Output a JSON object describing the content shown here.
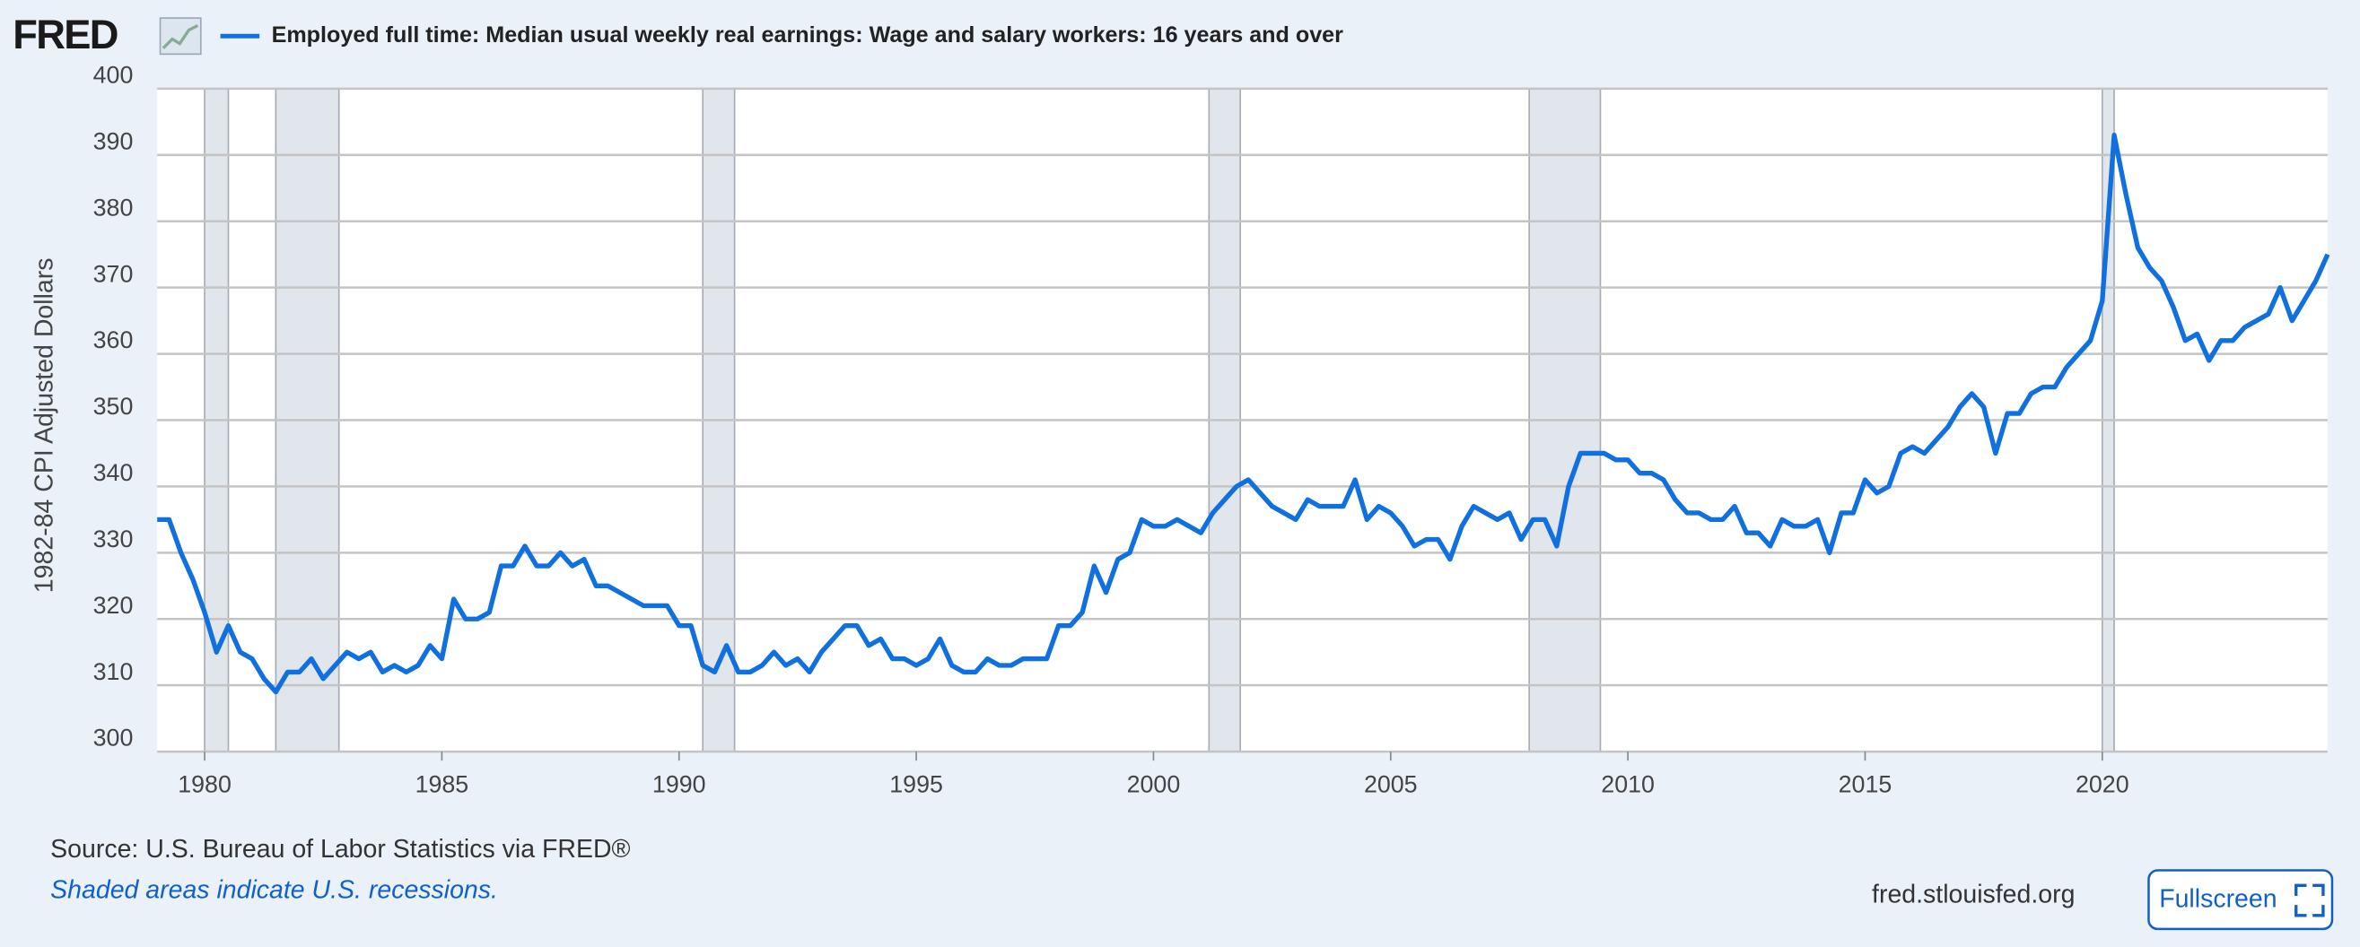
{
  "chart_data": {
    "type": "line",
    "logo": "FRED",
    "title": "Employed full time: Median usual weekly real earnings: Wage and salary workers: 16 years and over",
    "ylabel": "1982-84 CPI Adjusted Dollars",
    "source": "Source: U.S. Bureau of Labor Statistics via FRED®",
    "note": "Shaded areas indicate U.S. recessions.",
    "site": "fred.stlouisfed.org",
    "button": "Fullscreen",
    "xlim": [
      1979,
      2024.75
    ],
    "xticks": [
      1980,
      1985,
      1990,
      1995,
      2000,
      2005,
      2010,
      2015,
      2020
    ],
    "ylim": [
      300,
      400
    ],
    "yticks": [
      300,
      310,
      320,
      330,
      340,
      350,
      360,
      370,
      380,
      390,
      400
    ],
    "grid": true,
    "recessions": [
      [
        1980.0,
        1980.5
      ],
      [
        1981.5,
        1982.83
      ],
      [
        1990.5,
        1991.17
      ],
      [
        2001.17,
        2001.83
      ],
      [
        2007.92,
        2009.42
      ],
      [
        2020.0,
        2020.25
      ]
    ],
    "x": [
      1979,
      1979.25,
      1979.5,
      1979.75,
      1980,
      1980.25,
      1980.5,
      1980.75,
      1981,
      1981.25,
      1981.5,
      1981.75,
      1982,
      1982.25,
      1982.5,
      1982.75,
      1983,
      1983.25,
      1983.5,
      1983.75,
      1984,
      1984.25,
      1984.5,
      1984.75,
      1985,
      1985.25,
      1985.5,
      1985.75,
      1986,
      1986.25,
      1986.5,
      1986.75,
      1987,
      1987.25,
      1987.5,
      1987.75,
      1988,
      1988.25,
      1988.5,
      1988.75,
      1989,
      1989.25,
      1989.5,
      1989.75,
      1990,
      1990.25,
      1990.5,
      1990.75,
      1991,
      1991.25,
      1991.5,
      1991.75,
      1992,
      1992.25,
      1992.5,
      1992.75,
      1993,
      1993.25,
      1993.5,
      1993.75,
      1994,
      1994.25,
      1994.5,
      1994.75,
      1995,
      1995.25,
      1995.5,
      1995.75,
      1996,
      1996.25,
      1996.5,
      1996.75,
      1997,
      1997.25,
      1997.5,
      1997.75,
      1998,
      1998.25,
      1998.5,
      1998.75,
      1999,
      1999.25,
      1999.5,
      1999.75,
      2000,
      2000.25,
      2000.5,
      2000.75,
      2001,
      2001.25,
      2001.5,
      2001.75,
      2002,
      2002.25,
      2002.5,
      2002.75,
      2003,
      2003.25,
      2003.5,
      2003.75,
      2004,
      2004.25,
      2004.5,
      2004.75,
      2005,
      2005.25,
      2005.5,
      2005.75,
      2006,
      2006.25,
      2006.5,
      2006.75,
      2007,
      2007.25,
      2007.5,
      2007.75,
      2008,
      2008.25,
      2008.5,
      2008.75,
      2009,
      2009.25,
      2009.5,
      2009.75,
      2010,
      2010.25,
      2010.5,
      2010.75,
      2011,
      2011.25,
      2011.5,
      2011.75,
      2012,
      2012.25,
      2012.5,
      2012.75,
      2013,
      2013.25,
      2013.5,
      2013.75,
      2014,
      2014.25,
      2014.5,
      2014.75,
      2015,
      2015.25,
      2015.5,
      2015.75,
      2016,
      2016.25,
      2016.5,
      2016.75,
      2017,
      2017.25,
      2017.5,
      2017.75,
      2018,
      2018.25,
      2018.5,
      2018.75,
      2019,
      2019.25,
      2019.5,
      2019.75,
      2020,
      2020.25,
      2020.5,
      2020.75,
      2021,
      2021.25,
      2021.5,
      2021.75,
      2022,
      2022.25,
      2022.5,
      2022.75,
      2023,
      2023.25,
      2023.5,
      2023.75,
      2024,
      2024.25,
      2024.5,
      2024.75
    ],
    "series": [
      {
        "name": "Employed full time: Median usual weekly real earnings: Wage and salary workers: 16 years and over",
        "color": "#1070e0",
        "values": [
          335,
          335,
          330,
          326,
          321,
          315,
          319,
          315,
          314,
          311,
          309,
          312,
          312,
          314,
          311,
          313,
          315,
          314,
          315,
          312,
          313,
          312,
          313,
          316,
          314,
          323,
          320,
          320,
          321,
          328,
          328,
          331,
          328,
          328,
          330,
          328,
          329,
          325,
          325,
          324,
          323,
          322,
          322,
          322,
          319,
          319,
          313,
          312,
          316,
          312,
          312,
          313,
          315,
          313,
          314,
          312,
          315,
          317,
          319,
          319,
          316,
          317,
          314,
          314,
          313,
          314,
          317,
          313,
          312,
          312,
          314,
          313,
          313,
          314,
          314,
          314,
          319,
          319,
          321,
          328,
          324,
          329,
          330,
          335,
          334,
          334,
          335,
          334,
          333,
          336,
          338,
          340,
          341,
          339,
          337,
          336,
          335,
          338,
          337,
          337,
          337,
          341,
          335,
          337,
          336,
          334,
          331,
          332,
          332,
          329,
          334,
          337,
          336,
          335,
          336,
          332,
          335,
          335,
          331,
          340,
          345,
          345,
          345,
          344,
          344,
          342,
          342,
          341,
          338,
          336,
          336,
          335,
          335,
          337,
          333,
          333,
          331,
          335,
          334,
          334,
          335,
          330,
          336,
          336,
          341,
          339,
          340,
          345,
          346,
          345,
          347,
          349,
          352,
          354,
          352,
          345,
          351,
          351,
          354,
          355,
          355,
          358,
          360,
          362,
          368,
          393,
          384,
          376,
          373,
          371,
          367,
          362,
          363,
          359,
          362,
          362,
          364,
          365,
          366,
          370,
          365,
          368,
          371,
          375
        ]
      }
    ]
  }
}
